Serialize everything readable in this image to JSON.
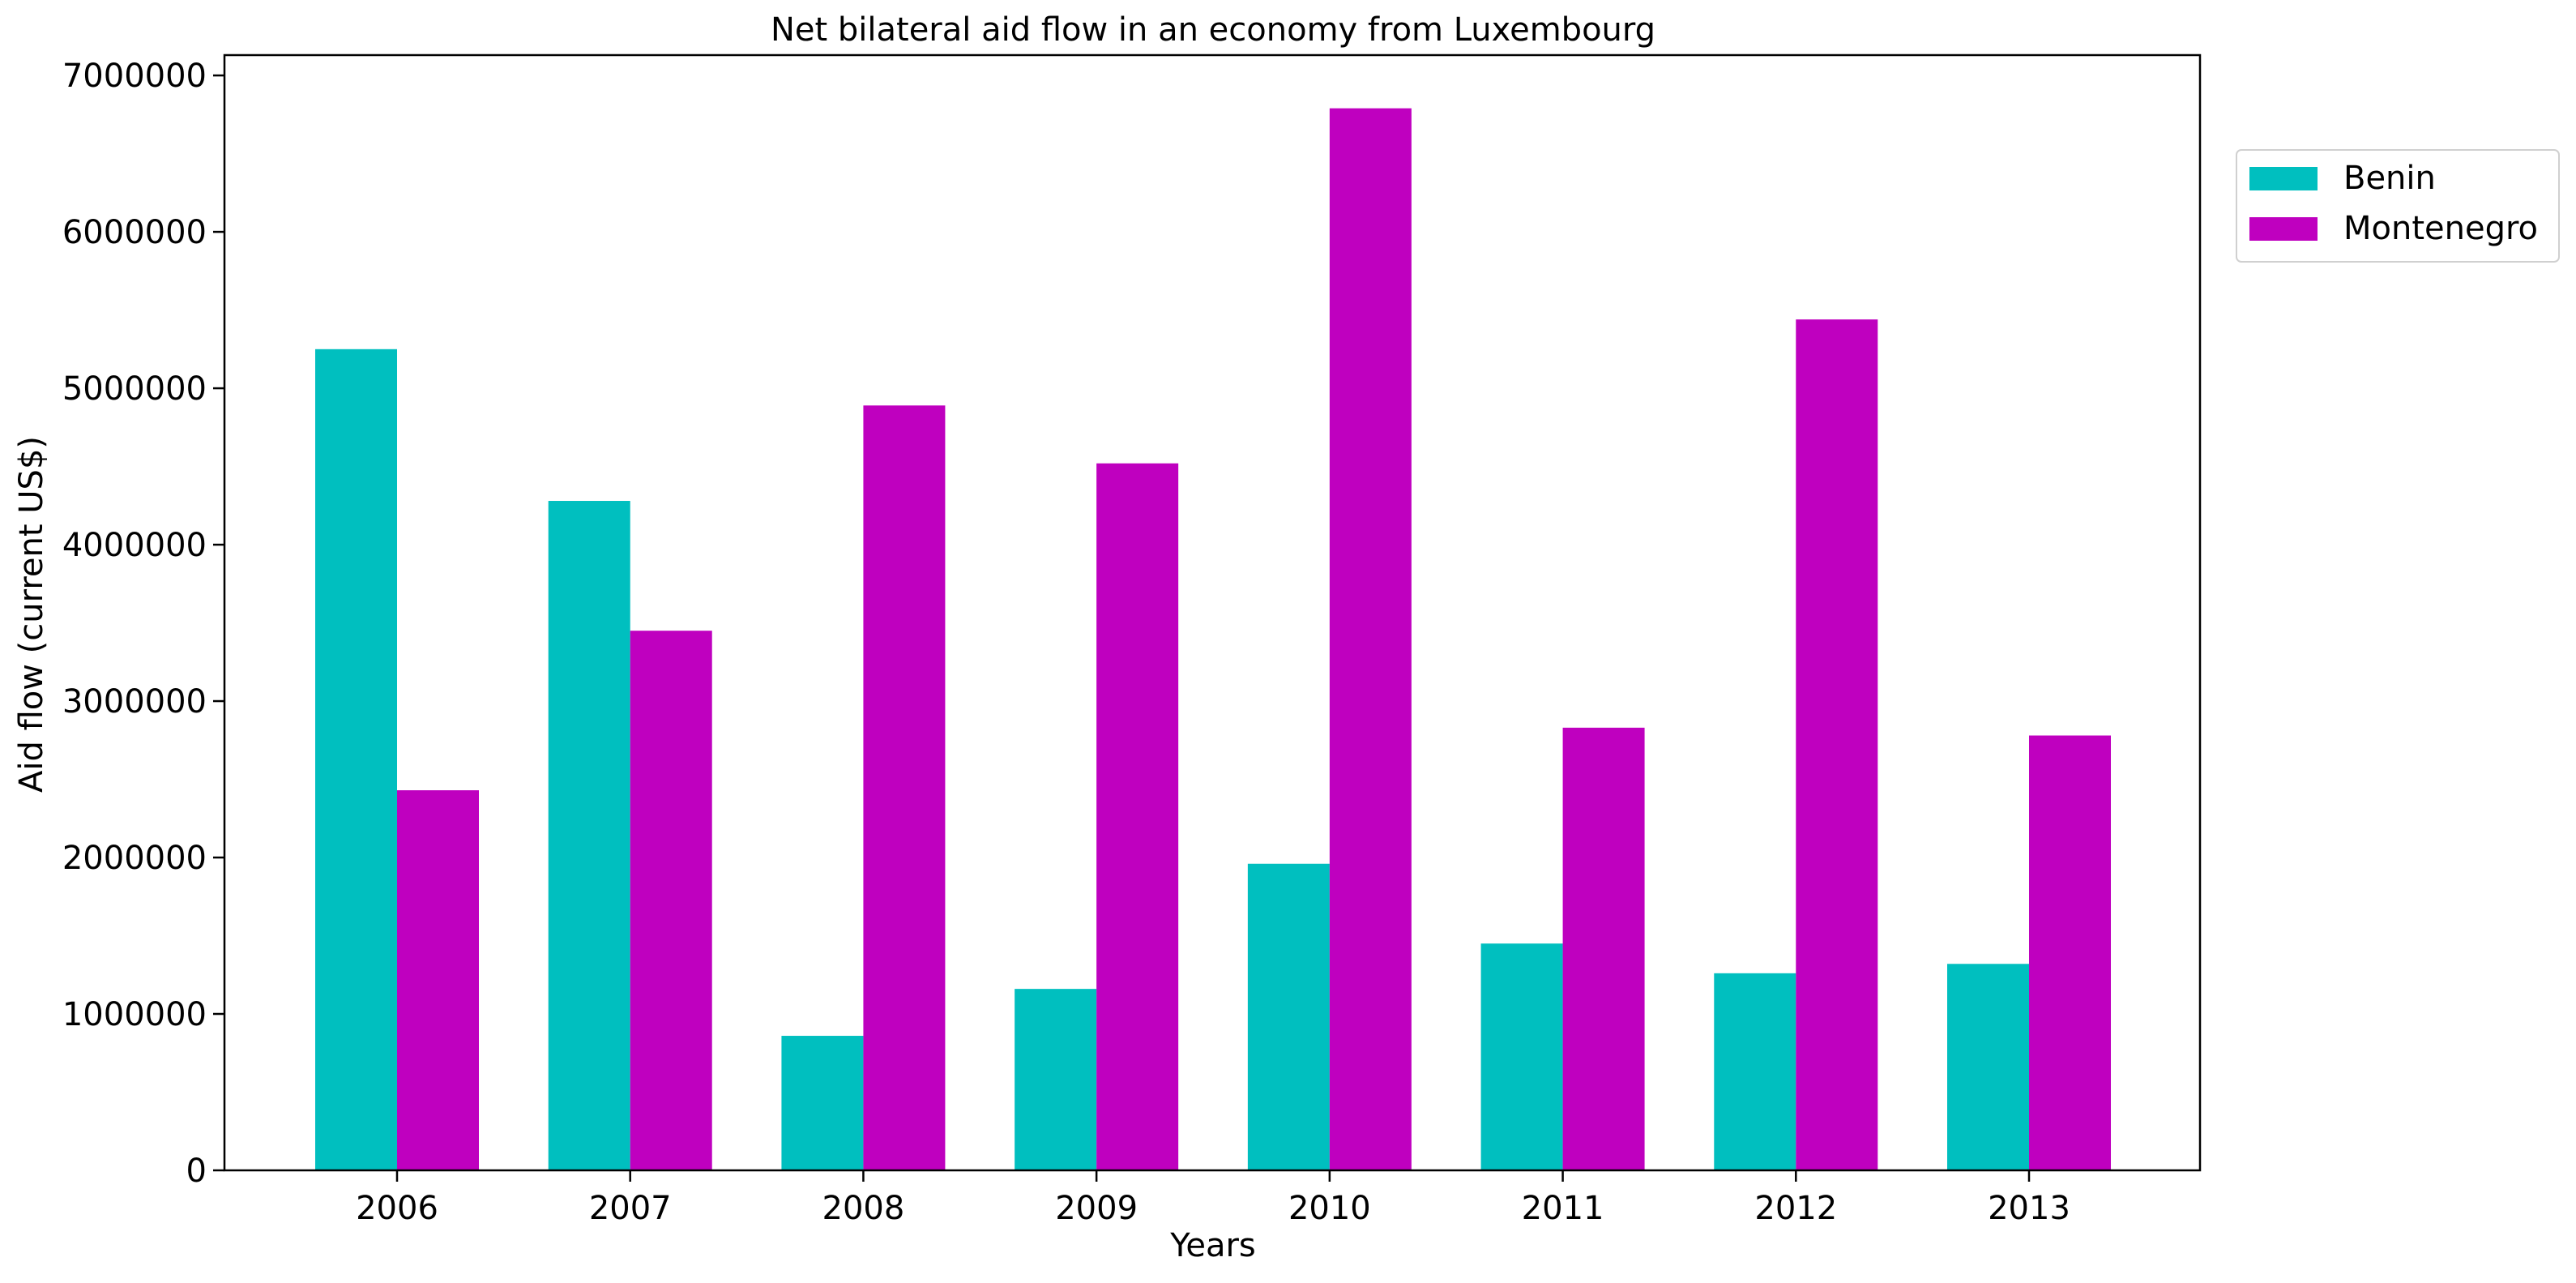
{
  "chart_data": {
    "type": "bar",
    "title": "Net bilateral aid flow in an economy from Luxembourg",
    "xlabel": "Years",
    "ylabel": "Aid flow (current US$)",
    "categories": [
      "2006",
      "2007",
      "2008",
      "2009",
      "2010",
      "2011",
      "2012",
      "2013"
    ],
    "series": [
      {
        "name": "Benin",
        "color": "#00bfbf",
        "values": [
          5250000,
          4280000,
          860000,
          1160000,
          1960000,
          1450000,
          1260000,
          1320000
        ]
      },
      {
        "name": "Montenegro",
        "color": "#bf00bf",
        "values": [
          2430000,
          3450000,
          4890000,
          4520000,
          6790000,
          2830000,
          5440000,
          2780000
        ]
      }
    ],
    "ylim": [
      0,
      7130000
    ],
    "yticks": [
      0,
      1000000,
      2000000,
      3000000,
      4000000,
      5000000,
      6000000,
      7000000
    ],
    "ytick_labels": [
      "0",
      "1000000",
      "2000000",
      "3000000",
      "4000000",
      "5000000",
      "6000000",
      "7000000"
    ],
    "grid": false,
    "legend_position": "outside-top-right"
  }
}
